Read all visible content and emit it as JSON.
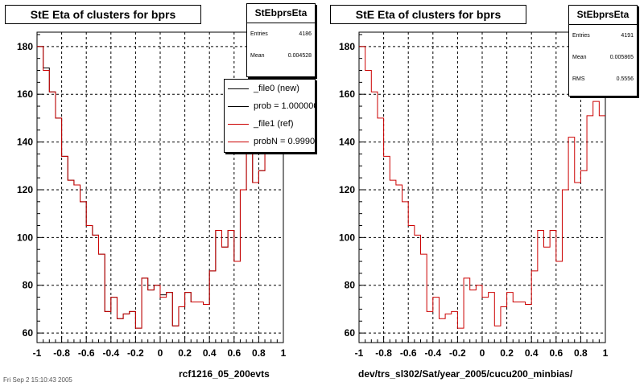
{
  "chart_data": [
    {
      "type": "histogram",
      "title": "StE Eta of clusters for bprs",
      "xlabel": "rcf1216_05_200evts",
      "ylabel": "",
      "xlim": [
        -1,
        1
      ],
      "ylim": [
        56,
        186
      ],
      "x_ticks": [
        "-1",
        "-0.8",
        "-0.6",
        "-0.4",
        "-0.2",
        "0",
        "0.2",
        "0.4",
        "0.6",
        "0.8",
        "1"
      ],
      "y_ticks": [
        "60",
        "80",
        "100",
        "120",
        "140",
        "160",
        "180"
      ],
      "grid": true,
      "bin_edges_range": [
        -1,
        1
      ],
      "series": [
        {
          "name": "_file0 (new)",
          "color": "#000000",
          "values": [
            180,
            171,
            161,
            150,
            134,
            124,
            122,
            115,
            105,
            101,
            93,
            69,
            75,
            66,
            68,
            69,
            62,
            83,
            78,
            80,
            76,
            77,
            63,
            71,
            77,
            73,
            73,
            72,
            86,
            103,
            96,
            103,
            90,
            120,
            147,
            123,
            128,
            141,
            178,
            172
          ]
        },
        {
          "name": "_file1 (ref)",
          "color": "#cc0000",
          "values": [
            180,
            170,
            161,
            150,
            134,
            124,
            122,
            115,
            105,
            101,
            93,
            69,
            75,
            66,
            68,
            69,
            62,
            83,
            78,
            80,
            75,
            77,
            63,
            71,
            77,
            73,
            73,
            72,
            86,
            103,
            96,
            103,
            90,
            120,
            142,
            123,
            128,
            139,
            178,
            172
          ]
        }
      ],
      "stats": {
        "name": "StEbprsEta",
        "entries_label": "Entries",
        "entries": "4186",
        "mean_label": "Mean",
        "mean": "0.004528"
      },
      "legend": {
        "entries": [
          "_file0 (new)",
          "prob = 1.000000",
          "_file1 (ref)",
          "probN = 0.99903"
        ],
        "position": "top-right"
      }
    },
    {
      "type": "histogram",
      "title": "StE Eta of clusters for bprs",
      "xlabel": "dev/trs_sl302/Sat/year_2005/cucu200_minbias/",
      "ylabel": "",
      "xlim": [
        -1,
        1
      ],
      "ylim": [
        56,
        186
      ],
      "x_ticks": [
        "-1",
        "-0.8",
        "-0.6",
        "-0.4",
        "-0.2",
        "0",
        "0.2",
        "0.4",
        "0.6",
        "0.8",
        "1"
      ],
      "y_ticks": [
        "60",
        "80",
        "100",
        "120",
        "140",
        "160",
        "180"
      ],
      "grid": true,
      "series": [
        {
          "name": "",
          "color": "#cc0000",
          "values": [
            180,
            170,
            161,
            150,
            134,
            124,
            122,
            115,
            105,
            101,
            93,
            69,
            75,
            66,
            68,
            69,
            62,
            83,
            78,
            80,
            75,
            77,
            63,
            71,
            77,
            73,
            73,
            72,
            86,
            103,
            96,
            103,
            90,
            120,
            142,
            123,
            128,
            151,
            157,
            151
          ]
        }
      ],
      "stats": {
        "name": "StEbprsEta",
        "entries_label": "Entries",
        "entries": "4191",
        "mean_label": "Mean",
        "mean": "0.005865",
        "rms_label": "RMS",
        "rms": "0.5556"
      }
    }
  ],
  "footer": "Fri Sep  2 15:10:43 2005"
}
